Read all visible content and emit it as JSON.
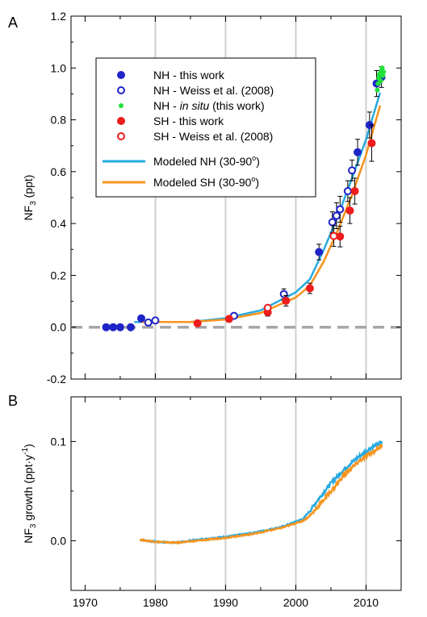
{
  "chart_data": [
    {
      "type": "scatter",
      "panel": "A",
      "xlim": [
        1968,
        2015
      ],
      "ylim": [
        -0.2,
        1.2
      ],
      "yticks": [
        "-0.2",
        "0.0",
        "0.2",
        "0.4",
        "0.6",
        "0.8",
        "1.0",
        "1.2"
      ],
      "grid_x": [
        1980,
        1990,
        2000,
        2010
      ],
      "zero_line": true,
      "legend_position": "top-center",
      "ylabel_parts": {
        "main": "NF",
        "sub": "3",
        "tail": " (ppt)"
      },
      "legend": [
        {
          "key": "nh_this_work",
          "marker": "filled-circle",
          "color": "#1f24c8",
          "label": "NH - this work"
        },
        {
          "key": "nh_weiss",
          "marker": "open-circle",
          "color": "#1f24c8",
          "label": "NH - Weiss et al. (2008)"
        },
        {
          "key": "nh_insitu",
          "marker": "small-filled-circle",
          "color": "#22e03c",
          "label_prefix": "NH - ",
          "label_italic": "in situ",
          "label_suffix": " (this work)"
        },
        {
          "key": "sh_this_work",
          "marker": "filled-circle",
          "color": "#ee1c1c",
          "label": "SH - this work"
        },
        {
          "key": "sh_weiss",
          "marker": "open-circle",
          "color": "#ee1c1c",
          "label": "SH - Weiss et al. (2008)"
        },
        {
          "key": "model_nh",
          "marker": "line",
          "color": "#27aae1",
          "label_main": "Modeled NH (30-90",
          "label_sup": "o",
          "label_end": ")"
        },
        {
          "key": "model_sh",
          "marker": "line",
          "color": "#f7941d",
          "label_main": "Modeled SH (30-90",
          "label_sup": "o",
          "label_end": ")"
        }
      ],
      "series": [
        {
          "key": "nh_this_work",
          "points": [
            {
              "x": 1973.0,
              "y": 0.0
            },
            {
              "x": 1974.0,
              "y": 0.0
            },
            {
              "x": 1975.0,
              "y": 0.0
            },
            {
              "x": 1976.5,
              "y": 0.0
            },
            {
              "x": 1978.0,
              "y": 0.034,
              "err": 0.01
            },
            {
              "x": 2003.3,
              "y": 0.29,
              "err": 0.03
            },
            {
              "x": 2008.8,
              "y": 0.675,
              "err": 0.05
            },
            {
              "x": 2010.5,
              "y": 0.78,
              "err": 0.05
            },
            {
              "x": 2011.5,
              "y": 0.94,
              "err": 0.05
            },
            {
              "x": 2012.2,
              "y": 0.965,
              "err": 0.04
            }
          ]
        },
        {
          "key": "nh_weiss",
          "points": [
            {
              "x": 1979.0,
              "y": 0.018
            },
            {
              "x": 1980.0,
              "y": 0.026
            },
            {
              "x": 1991.2,
              "y": 0.044,
              "err": 0.01
            },
            {
              "x": 1998.3,
              "y": 0.128,
              "err": 0.02
            },
            {
              "x": 2005.2,
              "y": 0.405,
              "err": 0.04
            },
            {
              "x": 2005.8,
              "y": 0.43,
              "err": 0.05
            },
            {
              "x": 2006.3,
              "y": 0.455,
              "err": 0.05
            },
            {
              "x": 2007.4,
              "y": 0.525,
              "err": 0.04
            },
            {
              "x": 2008.0,
              "y": 0.605,
              "err": 0.04
            }
          ]
        },
        {
          "key": "nh_insitu",
          "points": [
            {
              "x": 2011.6,
              "y": 0.915
            },
            {
              "x": 2011.7,
              "y": 0.94
            },
            {
              "x": 2011.8,
              "y": 0.96
            },
            {
              "x": 2011.9,
              "y": 0.975
            },
            {
              "x": 2012.0,
              "y": 0.98
            },
            {
              "x": 2012.1,
              "y": 0.95
            },
            {
              "x": 2012.2,
              "y": 0.99
            },
            {
              "x": 2012.3,
              "y": 1.0
            },
            {
              "x": 2012.4,
              "y": 0.97
            },
            {
              "x": 2012.5,
              "y": 0.985
            }
          ]
        },
        {
          "key": "sh_this_work",
          "points": [
            {
              "x": 1986.0,
              "y": 0.015
            },
            {
              "x": 1990.5,
              "y": 0.032,
              "err": 0.01
            },
            {
              "x": 1996.0,
              "y": 0.058,
              "err": 0.015
            },
            {
              "x": 1998.6,
              "y": 0.102,
              "err": 0.02
            },
            {
              "x": 2002.0,
              "y": 0.15,
              "err": 0.02
            },
            {
              "x": 2006.3,
              "y": 0.35,
              "err": 0.04
            },
            {
              "x": 2007.7,
              "y": 0.45,
              "err": 0.05
            },
            {
              "x": 2008.4,
              "y": 0.525,
              "err": 0.05
            },
            {
              "x": 2010.8,
              "y": 0.71,
              "err": 0.07
            }
          ]
        },
        {
          "key": "sh_weiss",
          "points": [
            {
              "x": 1996.0,
              "y": 0.075,
              "err": 0.01
            },
            {
              "x": 2005.4,
              "y": 0.352,
              "err": 0.04
            }
          ]
        },
        {
          "key": "model_nh",
          "type": "line",
          "x": [
            1977,
            1980,
            1985,
            1990,
            1995,
            2000,
            2002,
            2004,
            2006,
            2008,
            2010,
            2012
          ],
          "y": [
            0.02,
            0.02,
            0.02,
            0.035,
            0.065,
            0.135,
            0.185,
            0.3,
            0.43,
            0.575,
            0.725,
            0.905
          ]
        },
        {
          "key": "model_sh",
          "type": "line",
          "x": [
            1978,
            1980,
            1985,
            1990,
            1995,
            2000,
            2002,
            2004,
            2006,
            2008,
            2010,
            2012
          ],
          "y": [
            0.02,
            0.02,
            0.02,
            0.03,
            0.055,
            0.115,
            0.16,
            0.255,
            0.375,
            0.51,
            0.665,
            0.855
          ]
        }
      ]
    },
    {
      "type": "line",
      "panel": "B",
      "xlim": [
        1968,
        2015
      ],
      "ylim": [
        -0.05,
        0.145
      ],
      "yticks": [
        "0.0",
        "0.1"
      ],
      "xticks": [
        "1970",
        "1980",
        "1990",
        "2000",
        "2010"
      ],
      "grid_x": [
        1980,
        1990,
        2000,
        2010
      ],
      "ylabel_parts": {
        "main": "NF",
        "sub": "3",
        "mid": " growth (ppt·y",
        "sup": "-1",
        "end": ")"
      },
      "series": [
        {
          "key": "growth_nh",
          "color": "#27aae1",
          "x": [
            1977.8,
            1980,
            1983,
            1986,
            1990,
            1994,
            1998,
            2001,
            2002,
            2003,
            2005,
            2007,
            2009,
            2011,
            2012.3
          ],
          "y": [
            0.001,
            -0.001,
            -0.002,
            0.001,
            0.004,
            0.008,
            0.014,
            0.022,
            0.03,
            0.04,
            0.058,
            0.073,
            0.085,
            0.095,
            0.099
          ]
        },
        {
          "key": "growth_sh",
          "color": "#f7941d",
          "x": [
            1977.8,
            1980,
            1983,
            1986,
            1990,
            1994,
            1998,
            2001,
            2002,
            2003,
            2005,
            2007,
            2009,
            2011,
            2012.3
          ],
          "y": [
            0.001,
            -0.001,
            -0.002,
            0.0,
            0.003,
            0.007,
            0.013,
            0.02,
            0.025,
            0.033,
            0.05,
            0.067,
            0.08,
            0.09,
            0.096
          ]
        }
      ]
    }
  ],
  "labels": {
    "panel_a": "A",
    "panel_b": "B"
  }
}
